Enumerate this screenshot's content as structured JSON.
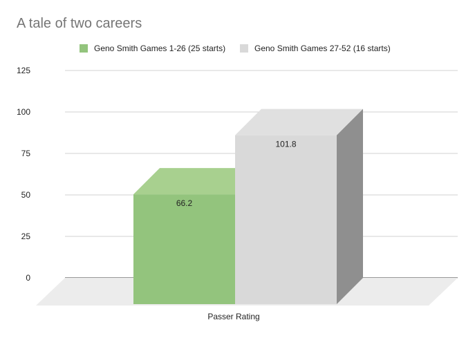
{
  "chart_data": {
    "type": "bar",
    "title": "A tale of two careers",
    "categories": [
      "Passer Rating"
    ],
    "series": [
      {
        "name": "Geno Smith Games 1-26 (25 starts)",
        "values": [
          66.2
        ],
        "color": "#93c47d",
        "top_color": "#a8d08f"
      },
      {
        "name": "Geno Smith Games 27-52 (16 starts)",
        "values": [
          101.8
        ],
        "color": "#d9d9d9",
        "top_color": "#e0e0e0",
        "side_color": "#8f8f8f"
      }
    ],
    "data_labels": [
      "66.2",
      "101.8"
    ],
    "yticks": [
      "0",
      "25",
      "50",
      "75",
      "100",
      "125"
    ],
    "ylim": [
      0,
      125
    ],
    "xlabel": "",
    "ylabel": "",
    "grid": true,
    "legend_position": "top",
    "style": "3d"
  }
}
